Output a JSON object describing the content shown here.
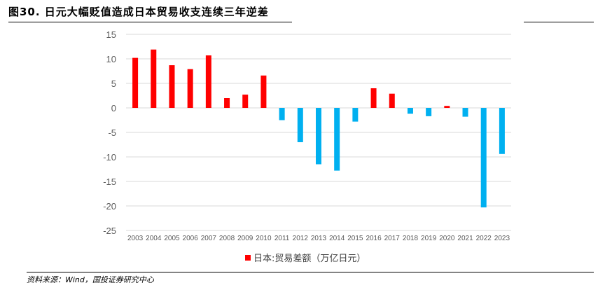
{
  "figure": {
    "title": "图30. 日元大幅贬值造成日本贸易收支连续三年逆差",
    "source": "资料来源：Wind，国投证券研究中心"
  },
  "colors": {
    "positive": "#ff0000",
    "negative": "#00b0f0",
    "grid": "#d9d9d9"
  },
  "chart_data": {
    "type": "bar",
    "title": "图30. 日元大幅贬值造成日本贸易收支连续三年逆差",
    "xlabel": "",
    "ylabel": "",
    "ylim": [
      -25,
      15
    ],
    "yticks": [
      15,
      10,
      5,
      0,
      -5,
      -10,
      -15,
      -20,
      -25
    ],
    "grid": true,
    "legend": "bottom",
    "categories": [
      "2003",
      "2004",
      "2005",
      "2006",
      "2007",
      "2008",
      "2009",
      "2010",
      "2011",
      "2012",
      "2013",
      "2014",
      "2015",
      "2016",
      "2017",
      "2018",
      "2019",
      "2020",
      "2021",
      "2022",
      "2023"
    ],
    "series": [
      {
        "name": "日本:贸易差额（万亿日元）",
        "values": [
          10.2,
          11.9,
          8.7,
          7.9,
          10.7,
          2.0,
          2.7,
          6.6,
          -2.5,
          -7.0,
          -11.5,
          -12.8,
          -2.8,
          4.0,
          2.9,
          -1.2,
          -1.7,
          0.4,
          -1.8,
          -20.3,
          -9.4
        ]
      }
    ]
  }
}
